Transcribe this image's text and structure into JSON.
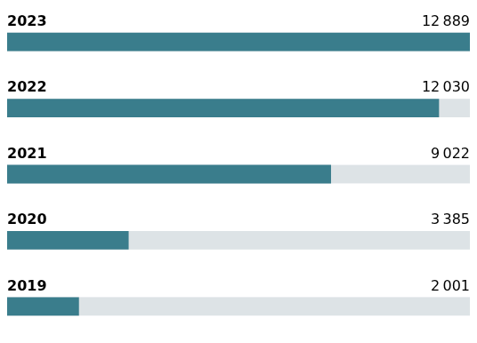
{
  "chart_data": {
    "type": "bar",
    "orientation": "horizontal",
    "categories": [
      "2023",
      "2022",
      "2021",
      "2020",
      "2019"
    ],
    "values": [
      12889,
      12030,
      9022,
      3385,
      2001
    ],
    "value_labels": [
      "12 889",
      "12 030",
      "9 022",
      "3 385",
      "2 001"
    ],
    "color": "#3a7d8c",
    "xlim": [
      0,
      12889
    ],
    "grid": false,
    "tick_labels": false,
    "data_labels": true
  }
}
